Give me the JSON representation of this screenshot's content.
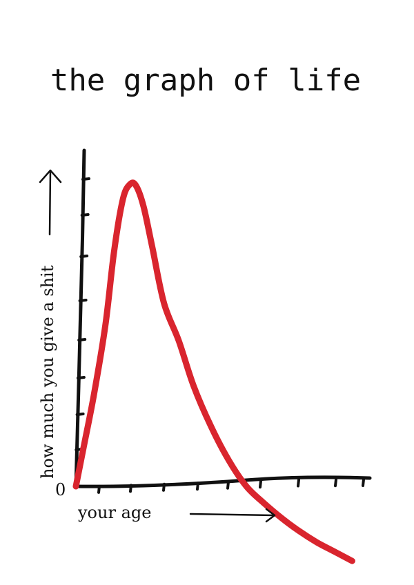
{
  "chart_data": {
    "type": "line",
    "title": "the graph of life",
    "xlabel": "your age",
    "ylabel": "how much you give a shit",
    "origin_label": "0",
    "grid": false,
    "legend": "none",
    "colors": {
      "curve": "#d9252e",
      "axes": "#111111"
    },
    "xlim": [
      0,
      10
    ],
    "ylim": [
      -1.5,
      9
    ],
    "series": [
      {
        "x": [
          0,
          0.25,
          0.6,
          1.0,
          1.3,
          1.6,
          1.85,
          2.05,
          2.3,
          2.6,
          3.0,
          3.5,
          4.0,
          4.6,
          5.2,
          5.8,
          6.4,
          7.0,
          7.6,
          8.2,
          8.8,
          9.4
        ],
        "values": [
          0,
          1.0,
          2.4,
          4.3,
          6.3,
          7.7,
          8.1,
          8.05,
          7.5,
          6.4,
          4.9,
          3.9,
          2.7,
          1.6,
          0.7,
          0.0,
          -0.45,
          -0.85,
          -1.2,
          -1.5,
          -1.75,
          -2.0
        ]
      }
    ]
  }
}
